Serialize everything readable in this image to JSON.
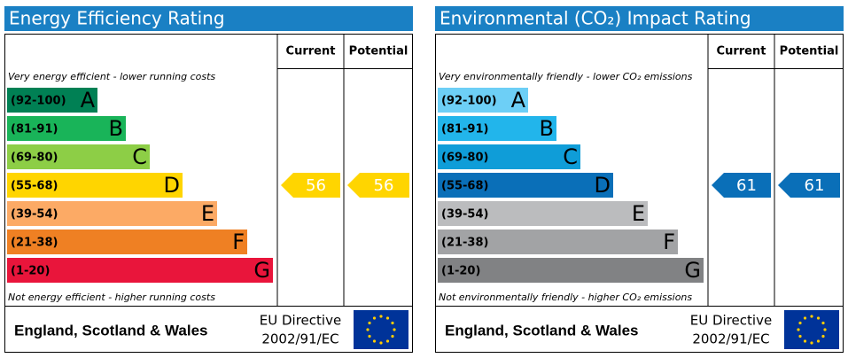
{
  "panels": [
    {
      "title": "Energy Efficiency Rating",
      "columns": [
        "Current",
        "Potential"
      ],
      "top_note": "Very energy efficient - lower running costs",
      "bottom_note": "Not energy efficient - higher running costs",
      "bands": [
        {
          "range": "(92-100)",
          "letter": "A",
          "color": "#008054"
        },
        {
          "range": "(81-91)",
          "letter": "B",
          "color": "#19b459"
        },
        {
          "range": "(69-80)",
          "letter": "C",
          "color": "#8dce46"
        },
        {
          "range": "(55-68)",
          "letter": "D",
          "color": "#ffd500"
        },
        {
          "range": "(39-54)",
          "letter": "E",
          "color": "#fcaa65"
        },
        {
          "range": "(21-38)",
          "letter": "F",
          "color": "#ef8023"
        },
        {
          "range": "(1-20)",
          "letter": "G",
          "color": "#e9153b"
        }
      ],
      "current": 56,
      "potential": 56,
      "footer": {
        "region": "England, Scotland & Wales",
        "directive": "EU Directive",
        "code": "2002/91/EC"
      }
    },
    {
      "title": "Environmental (CO₂) Impact Rating",
      "columns": [
        "Current",
        "Potential"
      ],
      "top_note": "Very environmentally friendly - lower CO₂ emissions",
      "bottom_note": "Not environmentally friendly - higher CO₂ emissions",
      "bands": [
        {
          "range": "(92-100)",
          "letter": "A",
          "color": "#6dcff6"
        },
        {
          "range": "(81-91)",
          "letter": "B",
          "color": "#22b5eb"
        },
        {
          "range": "(69-80)",
          "letter": "C",
          "color": "#0f9dd8"
        },
        {
          "range": "(55-68)",
          "letter": "D",
          "color": "#0a6fb8"
        },
        {
          "range": "(39-54)",
          "letter": "E",
          "color": "#bbbcbe"
        },
        {
          "range": "(21-38)",
          "letter": "F",
          "color": "#a2a3a5"
        },
        {
          "range": "(1-20)",
          "letter": "G",
          "color": "#818284"
        }
      ],
      "current": 61,
      "potential": 61,
      "footer": {
        "region": "England, Scotland & Wales",
        "directive": "EU Directive",
        "code": "2002/91/EC"
      }
    }
  ]
}
